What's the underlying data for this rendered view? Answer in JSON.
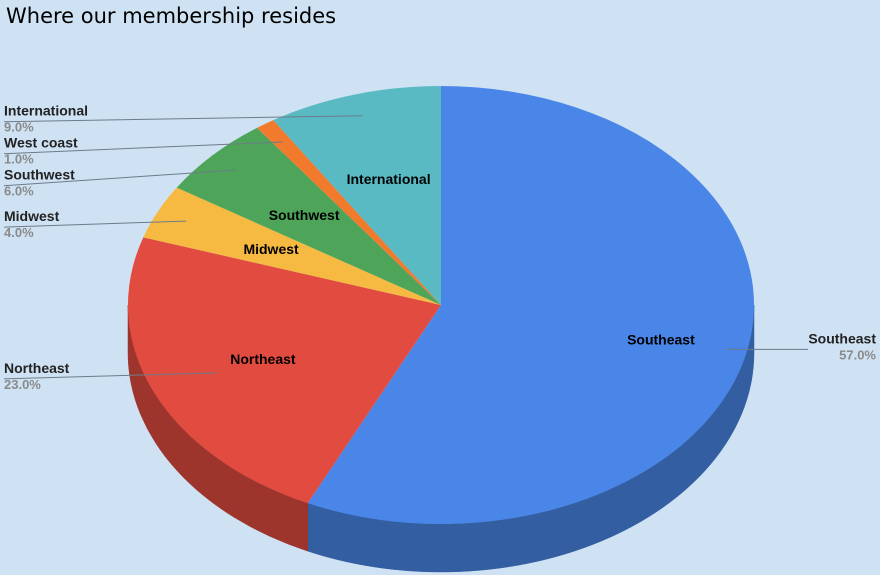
{
  "chart_data": {
    "type": "pie",
    "title": "Where our membership resides",
    "slices": [
      {
        "label": "Southeast",
        "value": 57.0,
        "pct_label": "57.0%",
        "color": "#4a86e8"
      },
      {
        "label": "Northeast",
        "value": 23.0,
        "pct_label": "23.0%",
        "color": "#e24b3f"
      },
      {
        "label": "Midwest",
        "value": 4.0,
        "pct_label": "4.0%",
        "color": "#f6b942"
      },
      {
        "label": "Southwest",
        "value": 6.0,
        "pct_label": "6.0%",
        "color": "#4ea55a"
      },
      {
        "label": "West coast",
        "value": 1.0,
        "pct_label": "1.0%",
        "color": "#f17a2c"
      },
      {
        "label": "International",
        "value": 9.0,
        "pct_label": "9.0%",
        "color": "#59bac4"
      }
    ],
    "legend": "none",
    "style": "3d"
  }
}
